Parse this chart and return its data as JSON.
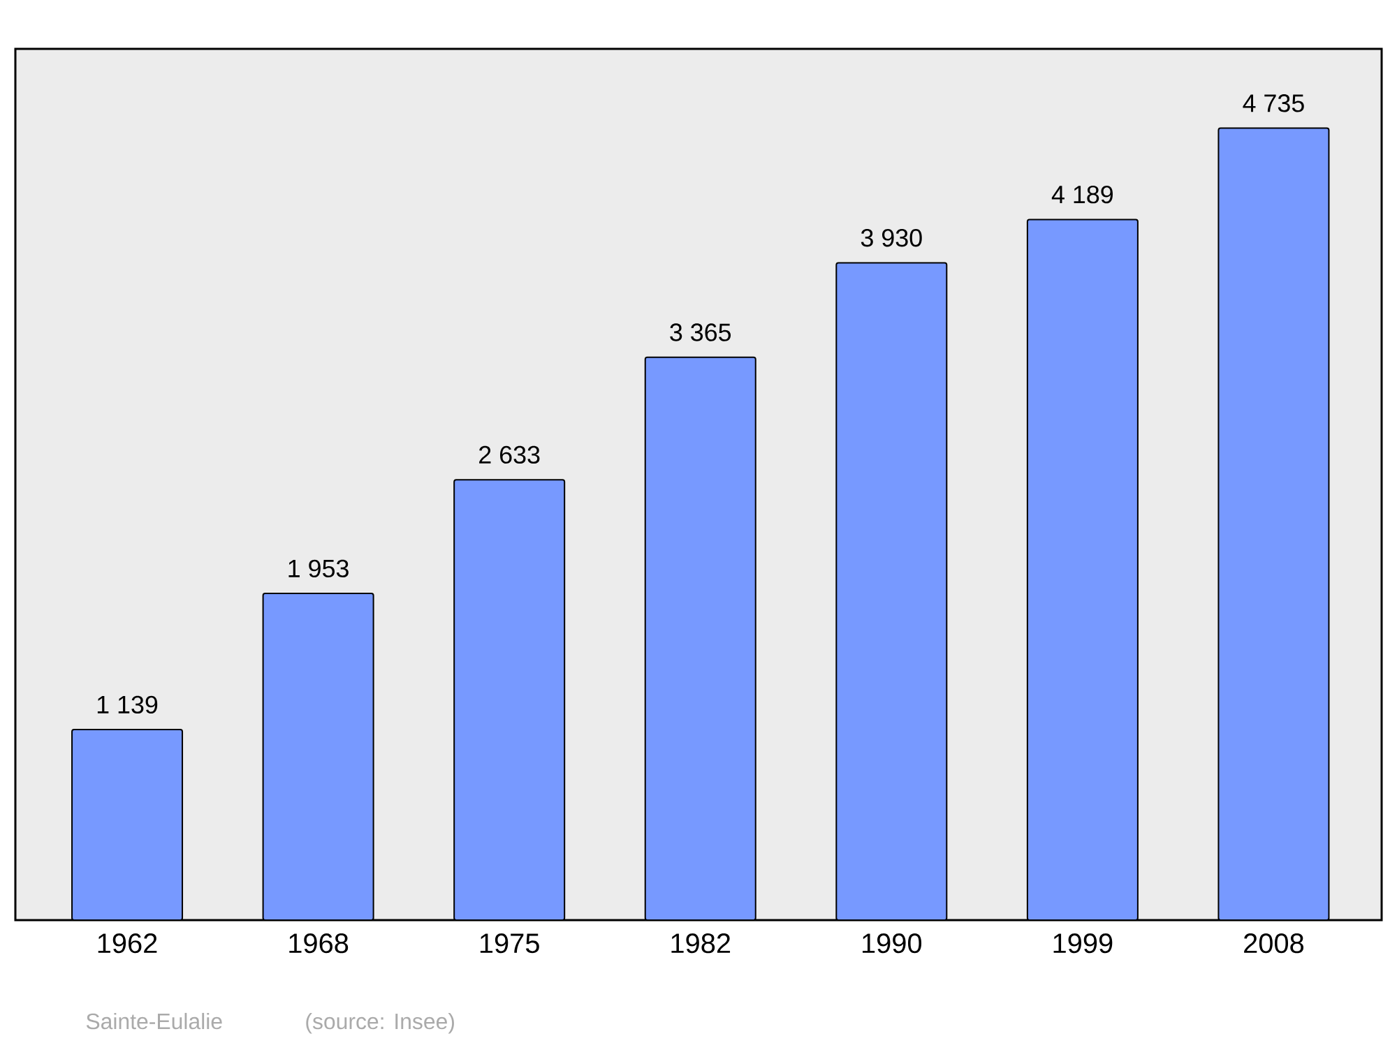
{
  "chart_data": {
    "type": "bar",
    "categories": [
      "1962",
      "1968",
      "1975",
      "1982",
      "1990",
      "1999",
      "2008"
    ],
    "values": [
      1139,
      1953,
      2633,
      3365,
      3930,
      4189,
      4735
    ],
    "value_labels": [
      "1 139",
      "1 953",
      "2 633",
      "3 365",
      "3 930",
      "4 189",
      "4 735"
    ],
    "color": "#7799ff",
    "annotations": [
      "Sainte-Eulalie",
      "(source: Insee)"
    ]
  }
}
